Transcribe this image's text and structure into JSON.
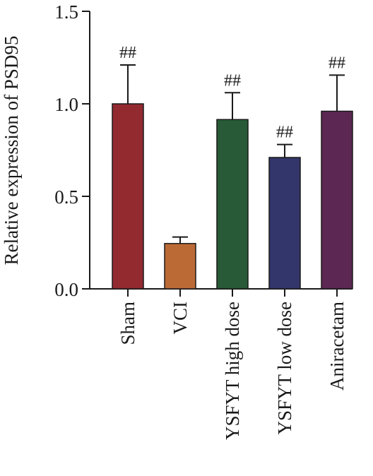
{
  "chart_data": {
    "type": "bar",
    "title": "",
    "xlabel": "",
    "ylabel": "Relative expression of PSD95",
    "ylim": [
      0,
      1.5
    ],
    "yticks": [
      0.0,
      0.5,
      1.0,
      1.5
    ],
    "ytick_labels": [
      "0.0",
      "0.5",
      "1.0",
      "1.5"
    ],
    "grid": false,
    "categories": [
      "Sham",
      "VCI",
      "YSFYT high dose",
      "YSFYT low dose",
      "Aniracetam"
    ],
    "values": [
      1.0,
      0.245,
      0.915,
      0.71,
      0.96
    ],
    "errors": [
      0.21,
      0.035,
      0.145,
      0.07,
      0.195
    ],
    "annotations": [
      "##",
      "",
      "##",
      "##",
      "##"
    ],
    "colors": [
      "#922a30",
      "#bb6a35",
      "#285a38",
      "#33366a",
      "#5c2752"
    ]
  }
}
